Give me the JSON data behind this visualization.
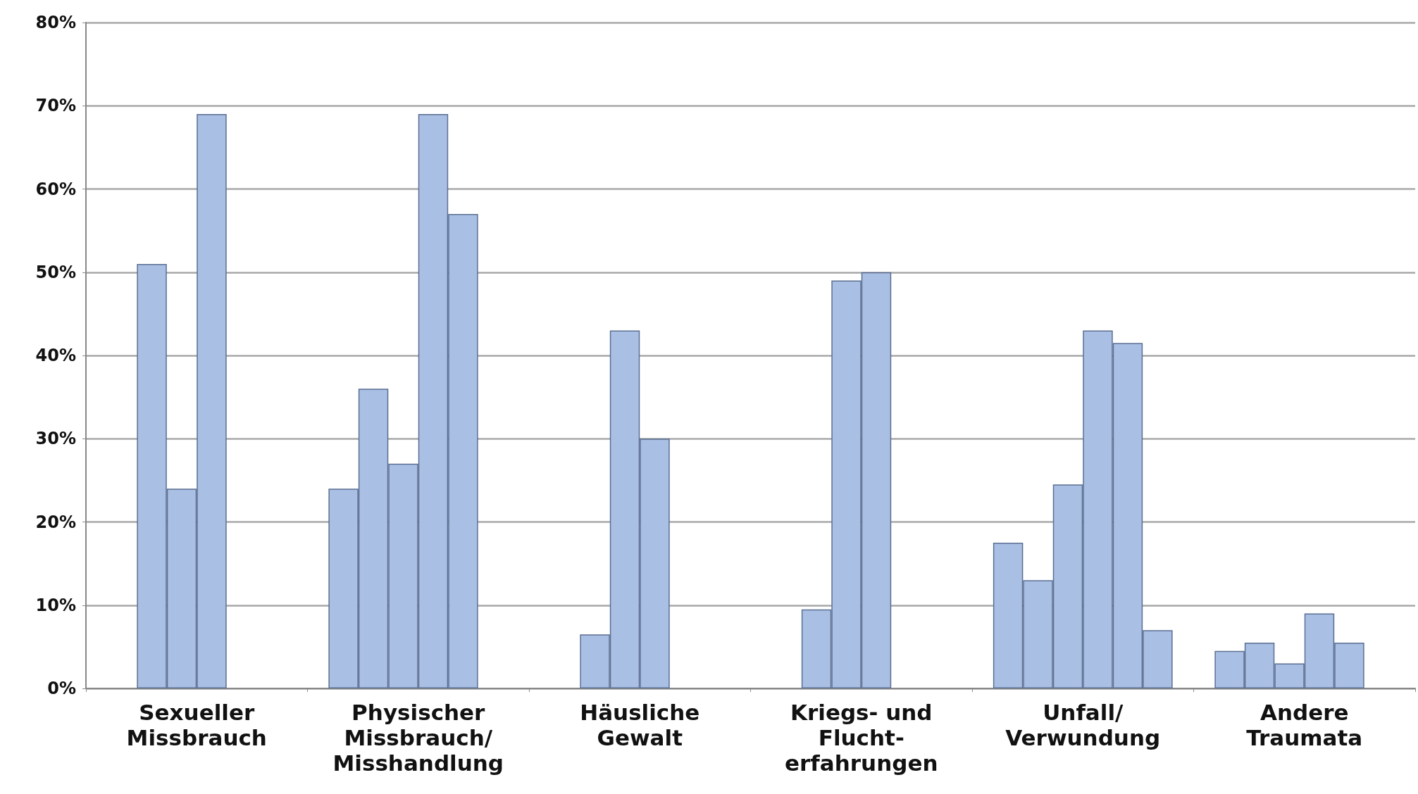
{
  "chart_data": {
    "type": "bar",
    "categories": [
      "Sexueller\nMissbrauch",
      "Physischer\nMissbrauch/\nMisshandlung",
      "Häusliche\nGewalt",
      "Kriegs- und\nFlucht-\nerfahrungen",
      "Unfall/\nVerwundung",
      "Andere\nTraumata"
    ],
    "series": [
      {
        "color": "#a9bfe3",
        "values": [
          null,
          24,
          null,
          null,
          17.5,
          4.5
        ]
      },
      {
        "color": "#a9bfe3",
        "values": [
          51,
          36,
          6.5,
          9.5,
          13,
          5.5
        ]
      },
      {
        "color": "#a9bfe3",
        "values": [
          24,
          27,
          43,
          49,
          24.5,
          3
        ]
      },
      {
        "color": "#a9bfe3",
        "values": [
          69,
          69,
          30,
          50,
          43,
          9
        ]
      },
      {
        "color": "#a9bfe3",
        "values": [
          null,
          57,
          null,
          null,
          41.5,
          5.5
        ]
      },
      {
        "color": "#a9bfe3",
        "values": [
          null,
          null,
          null,
          null,
          7,
          null
        ]
      }
    ],
    "ylim": [
      0,
      80
    ],
    "yticks": [
      {
        "value": 0,
        "label": "0%"
      },
      {
        "value": 10,
        "label": "10%"
      },
      {
        "value": 20,
        "label": "20%"
      },
      {
        "value": 30,
        "label": "30%"
      },
      {
        "value": 40,
        "label": "40%"
      },
      {
        "value": 50,
        "label": "50%"
      },
      {
        "value": 60,
        "label": "60%"
      },
      {
        "value": 70,
        "label": "70%"
      },
      {
        "value": 80,
        "label": "80%"
      }
    ],
    "grid": "y"
  }
}
